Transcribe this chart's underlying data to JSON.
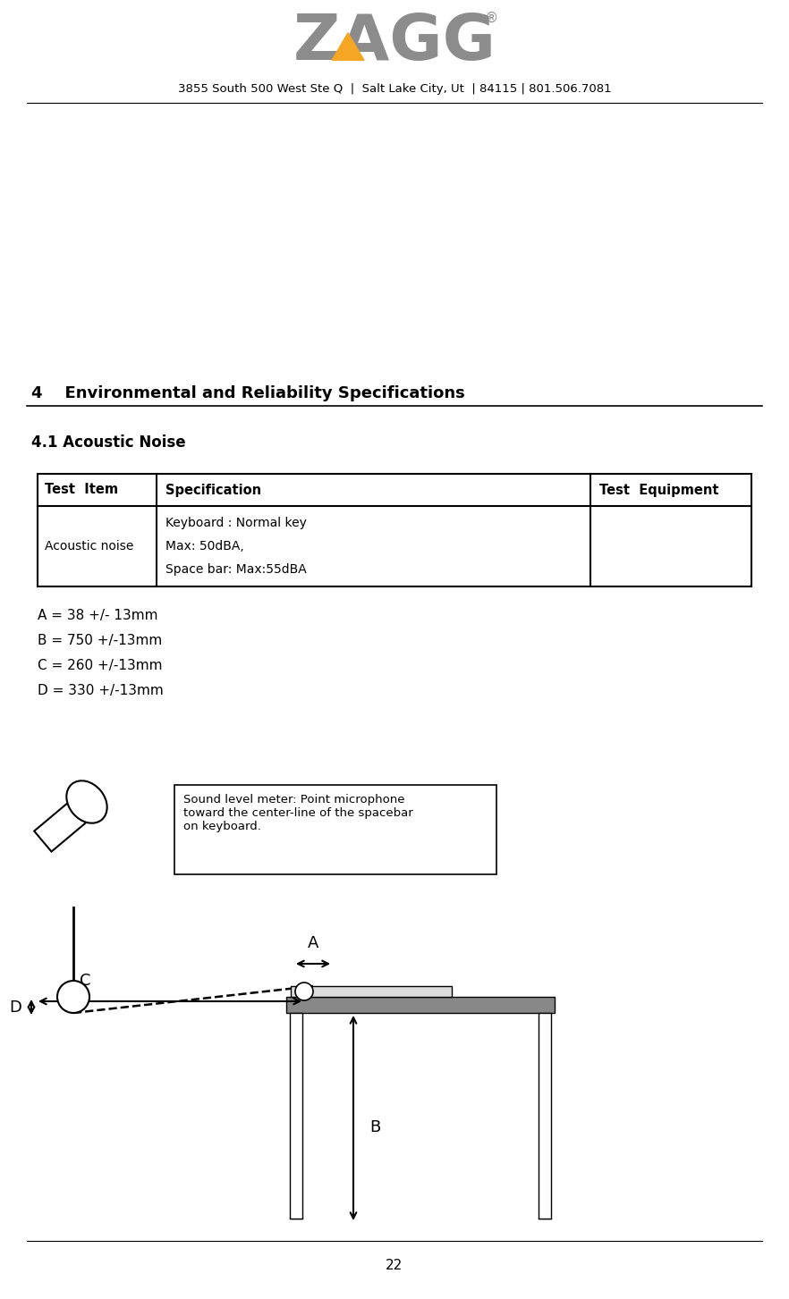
{
  "header_address": "3855 South 500 West Ste Q  |  Salt Lake City, Ut  | 84115 | 801.506.7081",
  "section_title": "4    Environmental and Reliability Specifications",
  "subsection_title": "4.1 Acoustic Noise",
  "table_headers": [
    "Test  Item",
    "Specification",
    "Test  Equipment"
  ],
  "table_row_col0": "Acoustic noise",
  "table_row_col1_lines": [
    "Keyboard : Normal key",
    "Max: 50dBA,",
    "Space bar: Max:55dBA"
  ],
  "table_row_col2": "",
  "measurements": [
    "A = 38 +/- 13mm",
    "B = 750 +/-13mm",
    "C = 260 +/-13mm",
    "D = 330 +/-13mm"
  ],
  "callout_text": "Sound level meter: Point microphone\ntoward the center-line of the spacebar\non keyboard.",
  "page_number": "22",
  "zagg_color": "#8c8c8c",
  "zagg_triangle_color": "#F5A623",
  "bg_color": "#ffffff",
  "text_color": "#000000"
}
